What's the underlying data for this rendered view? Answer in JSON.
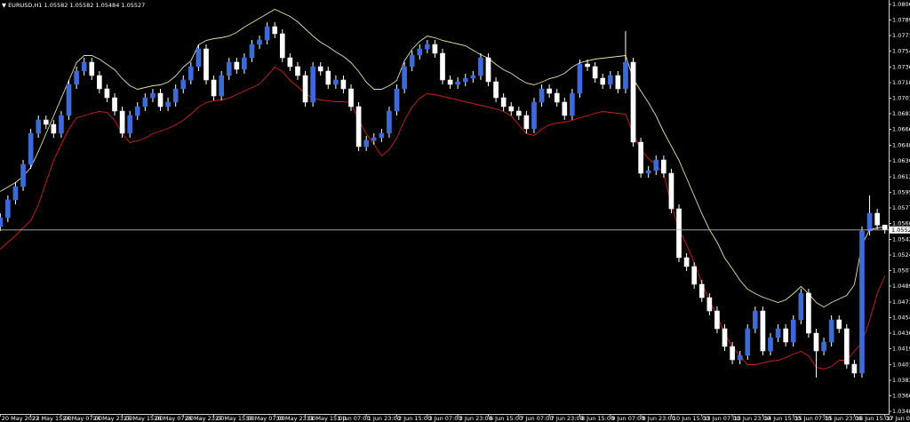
{
  "chart_data": {
    "type": "candlestick",
    "symbol": "EURUSD,H1",
    "categories": [
      "20 May 2022",
      null,
      null,
      null,
      "23 May 15:00",
      null,
      null,
      null,
      "24 May 07:00",
      null,
      null,
      null,
      "24 May 23:00",
      null,
      null,
      null,
      "25 May 15:00",
      null,
      null,
      null,
      "26 May 07:00",
      null,
      null,
      null,
      "26 May 23:00",
      null,
      null,
      null,
      "27 May 15:00",
      null,
      null,
      null,
      "30 May 07:00",
      null,
      null,
      null,
      "30 May 23:00",
      null,
      null,
      null,
      "31 May 15:00",
      null,
      null,
      null,
      "1 Jun 07:00",
      null,
      null,
      null,
      "1 Jun 23:00",
      null,
      null,
      null,
      "2 Jun 15:00",
      null,
      null,
      null,
      "3 Jun 07:00",
      null,
      null,
      null,
      "3 Jun 23:00",
      null,
      null,
      null,
      "6 Jun 15:00",
      null,
      null,
      null,
      "7 Jun 07:00",
      null,
      null,
      null,
      "7 Jun 23:00",
      null,
      null,
      null,
      "8 Jun 15:00",
      null,
      null,
      null,
      "9 Jun 07:00",
      null,
      null,
      null,
      "9 Jun 23:00",
      null,
      null,
      null,
      "10 Jun 15:00",
      null,
      null,
      null,
      "13 Jun 07:00",
      null,
      null,
      null,
      "13 Jun 23:00",
      null,
      null,
      null,
      "14 Jun 15:00",
      null,
      null,
      null,
      "15 Jun 07:00",
      null,
      null,
      null,
      "15 Jun 23:00",
      null,
      null,
      null,
      "16 Jun 15:00",
      null,
      null,
      null,
      "17 Jun 07:00"
    ],
    "open": [
      1.05565,
      1.05665,
      1.05865,
      1.06015,
      1.06265,
      1.06615,
      1.06765,
      1.06715,
      1.06615,
      1.06815,
      1.07165,
      1.07315,
      1.07415,
      1.07265,
      1.07115,
      1.07015,
      1.06865,
      1.06615,
      1.06815,
      1.06915,
      1.07015,
      1.07065,
      1.06915,
      1.06965,
      1.07115,
      1.07215,
      1.07365,
      1.07565,
      1.07215,
      1.07035,
      1.07265,
      1.07415,
      1.07335,
      1.07465,
      1.07615,
      1.07665,
      1.07815,
      1.07735,
      1.07465,
      1.07365,
      1.07265,
      1.06965,
      1.07365,
      1.07315,
      1.07165,
      1.07215,
      1.07115,
      1.06915,
      1.06465,
      1.06535,
      1.06565,
      1.06615,
      1.06865,
      1.07115,
      1.07365,
      1.07495,
      1.07565,
      1.07615,
      1.07515,
      1.07215,
      1.07165,
      1.07195,
      1.07235,
      1.07265,
      1.07465,
      1.07195,
      1.07015,
      1.06915,
      1.06865,
      1.06815,
      1.06665,
      1.06965,
      1.07115,
      1.07065,
      1.06965,
      1.06815,
      1.07065,
      1.07395,
      1.07365,
      1.07235,
      1.07165,
      1.07265,
      1.07115,
      1.07415,
      1.06515,
      1.06165,
      1.06195,
      1.06315,
      1.06165,
      1.05765,
      1.05215,
      1.05115,
      1.04915,
      1.04765,
      1.04615,
      1.04415,
      1.04215,
      1.04065,
      1.04115,
      1.04415,
      1.04615,
      1.04165,
      1.04315,
      1.04415,
      1.04265,
      1.04515,
      1.04815,
      1.04365,
      1.04165,
      1.04265,
      1.04515,
      1.04415,
      1.04015,
      1.03915,
      1.05515,
      1.05715,
      1.05582
    ],
    "high": [
      1.05715,
      1.05915,
      1.06065,
      1.06315,
      1.06665,
      1.06815,
      1.06815,
      1.06765,
      1.06865,
      1.07215,
      1.07365,
      1.07465,
      1.07465,
      1.07315,
      1.07165,
      1.07065,
      1.06915,
      1.06865,
      1.06965,
      1.07065,
      1.07115,
      1.07115,
      1.07015,
      1.07165,
      1.07265,
      1.07415,
      1.07615,
      1.07615,
      1.07265,
      1.07315,
      1.07465,
      1.07465,
      1.07515,
      1.07665,
      1.07715,
      1.07865,
      1.07865,
      1.07785,
      1.07515,
      1.07415,
      1.07315,
      1.07415,
      1.07415,
      1.07365,
      1.07265,
      1.07265,
      1.07165,
      1.06965,
      1.06585,
      1.06615,
      1.06665,
      1.06915,
      1.07165,
      1.07415,
      1.07545,
      1.07615,
      1.07665,
      1.07665,
      1.07565,
      1.07265,
      1.07245,
      1.07285,
      1.07315,
      1.07515,
      1.07515,
      1.07245,
      1.07065,
      1.06965,
      1.06915,
      1.06865,
      1.07015,
      1.07165,
      1.07165,
      1.07115,
      1.07015,
      1.07115,
      1.07445,
      1.07445,
      1.07415,
      1.07285,
      1.07315,
      1.07315,
      1.07765,
      1.07465,
      1.06565,
      1.06245,
      1.06365,
      1.06365,
      1.06215,
      1.05815,
      1.05265,
      1.05165,
      1.04965,
      1.04815,
      1.04665,
      1.04465,
      1.04265,
      1.04165,
      1.04465,
      1.04665,
      1.04665,
      1.04365,
      1.04465,
      1.04465,
      1.04565,
      1.04865,
      1.04865,
      1.04415,
      1.04315,
      1.04565,
      1.04565,
      1.04465,
      1.04065,
      1.05565,
      1.05915,
      1.05765,
      1.05582
    ],
    "low": [
      1.05515,
      1.05615,
      1.05815,
      1.05965,
      1.06215,
      1.06565,
      1.06665,
      1.06565,
      1.06565,
      1.06765,
      1.07115,
      1.07265,
      1.07215,
      1.07065,
      1.06965,
      1.06815,
      1.06565,
      1.06565,
      1.06765,
      1.06865,
      1.06965,
      1.06865,
      1.06865,
      1.06915,
      1.07065,
      1.07165,
      1.07315,
      1.07165,
      1.06985,
      1.06985,
      1.07215,
      1.07285,
      1.07285,
      1.07415,
      1.07565,
      1.07615,
      1.07685,
      1.07415,
      1.07315,
      1.07215,
      1.06915,
      1.06915,
      1.07265,
      1.07115,
      1.07115,
      1.07065,
      1.06865,
      1.06415,
      1.06415,
      1.06485,
      1.06515,
      1.06565,
      1.06815,
      1.07065,
      1.07315,
      1.07445,
      1.07515,
      1.07465,
      1.07165,
      1.07115,
      1.07115,
      1.07145,
      1.07185,
      1.07215,
      1.07145,
      1.06965,
      1.06865,
      1.06815,
      1.06765,
      1.06615,
      1.06615,
      1.06915,
      1.07015,
      1.06915,
      1.06765,
      1.06765,
      1.07015,
      1.07315,
      1.07185,
      1.07115,
      1.07115,
      1.07065,
      1.07065,
      1.06465,
      1.06115,
      1.06115,
      1.06145,
      1.06115,
      1.05715,
      1.05165,
      1.05065,
      1.04865,
      1.04715,
      1.04565,
      1.04365,
      1.04165,
      1.04015,
      1.04015,
      1.04065,
      1.04365,
      1.04115,
      1.04115,
      1.04265,
      1.04215,
      1.04215,
      1.04465,
      1.04315,
      1.03865,
      1.04115,
      1.04215,
      1.04365,
      1.03965,
      1.03865,
      1.03865,
      1.05465,
      1.05532,
      1.05484
    ],
    "close": [
      1.05665,
      1.05865,
      1.06015,
      1.06265,
      1.06615,
      1.06765,
      1.06715,
      1.06615,
      1.06815,
      1.07165,
      1.07315,
      1.07415,
      1.07265,
      1.07115,
      1.07015,
      1.06865,
      1.06615,
      1.06815,
      1.06915,
      1.07015,
      1.07065,
      1.06915,
      1.06965,
      1.07115,
      1.07215,
      1.07365,
      1.07565,
      1.07215,
      1.07035,
      1.07265,
      1.07415,
      1.07335,
      1.07465,
      1.07615,
      1.07665,
      1.07815,
      1.07735,
      1.07465,
      1.07365,
      1.07265,
      1.06965,
      1.07365,
      1.07315,
      1.07165,
      1.07215,
      1.07115,
      1.06915,
      1.06465,
      1.06535,
      1.06565,
      1.06615,
      1.06865,
      1.07115,
      1.07365,
      1.07495,
      1.07565,
      1.07615,
      1.07515,
      1.07215,
      1.07165,
      1.07195,
      1.07235,
      1.07265,
      1.07465,
      1.07195,
      1.07015,
      1.06915,
      1.06865,
      1.06815,
      1.06665,
      1.06965,
      1.07115,
      1.07065,
      1.06965,
      1.06815,
      1.07065,
      1.07395,
      1.07365,
      1.07235,
      1.07165,
      1.07265,
      1.07115,
      1.07415,
      1.06515,
      1.06165,
      1.06195,
      1.06315,
      1.06165,
      1.05765,
      1.05215,
      1.05115,
      1.04915,
      1.04765,
      1.04615,
      1.04415,
      1.04215,
      1.04065,
      1.04115,
      1.04415,
      1.04615,
      1.04165,
      1.04315,
      1.04415,
      1.04265,
      1.04515,
      1.04815,
      1.04365,
      1.04165,
      1.04265,
      1.04515,
      1.04415,
      1.04015,
      1.03915,
      1.05515,
      1.05715,
      1.05582,
      1.05527
    ],
    "up_color": "#3d6ad6",
    "down_color": "#ffffff",
    "wick_color": "#ffffff",
    "lines": [
      {
        "color": "#e4e4a6",
        "values": [
          1.0596,
          1.0601,
          1.0606,
          1.0613,
          1.0623,
          1.0641,
          1.0661,
          1.0681,
          1.0701,
          1.0721,
          1.0741,
          1.0749,
          1.0749,
          1.0745,
          1.0739,
          1.0733,
          1.0723,
          1.0715,
          1.0711,
          1.0713,
          1.0715,
          1.0716,
          1.0719,
          1.0726,
          1.0736,
          1.0743,
          1.0761,
          1.0766,
          1.0768,
          1.0769,
          1.0771,
          1.0775,
          1.0781,
          1.0786,
          1.0791,
          1.0796,
          1.0801,
          1.0797,
          1.0793,
          1.0787,
          1.0779,
          1.0771,
          1.0764,
          1.0759,
          1.0753,
          1.0748,
          1.0741,
          1.0731,
          1.0719,
          1.0711,
          1.0711,
          1.0715,
          1.0721,
          1.0743,
          1.0756,
          1.0765,
          1.0771,
          1.0769,
          1.0766,
          1.0764,
          1.0762,
          1.076,
          1.0755,
          1.075,
          1.0746,
          1.0739,
          1.0733,
          1.0729,
          1.0723,
          1.0718,
          1.0716,
          1.0719,
          1.0723,
          1.0725,
          1.0729,
          1.0736,
          1.0741,
          1.0743,
          1.0745,
          1.0746,
          1.0747,
          1.0748,
          1.0749,
          1.0723,
          1.0709,
          1.0696,
          1.0681,
          1.0663,
          1.0647,
          1.0631,
          1.0611,
          1.0591,
          1.0571,
          1.0553,
          1.0539,
          1.0521,
          1.0509,
          1.0496,
          1.0486,
          1.0481,
          1.0477,
          1.0474,
          1.0471,
          1.0474,
          1.0481,
          1.0489,
          1.0481,
          1.0471,
          1.0466,
          1.0471,
          1.0475,
          1.0479,
          1.0491,
          1.0536,
          1.0553,
          1.0555,
          1.0556
        ]
      },
      {
        "color": "#c8261d",
        "values": [
          1.0531,
          1.0539,
          1.0546,
          1.0555,
          1.0563,
          1.0581,
          1.0606,
          1.0631,
          1.0649,
          1.0666,
          1.0679,
          1.0681,
          1.0684,
          1.0686,
          1.0685,
          1.0676,
          1.0661,
          1.0651,
          1.0653,
          1.0656,
          1.0661,
          1.0664,
          1.0667,
          1.0671,
          1.0676,
          1.0683,
          1.0691,
          1.0696,
          1.0698,
          1.0699,
          1.0701,
          1.0705,
          1.0709,
          1.0713,
          1.0717,
          1.0726,
          1.0736,
          1.0731,
          1.0721,
          1.0714,
          1.0706,
          1.0701,
          1.0699,
          1.0698,
          1.0697,
          1.0697,
          1.0696,
          1.0676,
          1.0661,
          1.0649,
          1.0636,
          1.0643,
          1.0656,
          1.0676,
          1.0691,
          1.0701,
          1.0706,
          1.0705,
          1.0703,
          1.0701,
          1.0699,
          1.0697,
          1.0695,
          1.0693,
          1.0691,
          1.0689,
          1.0686,
          1.0681,
          1.0671,
          1.0661,
          1.0659,
          1.0666,
          1.0671,
          1.0673,
          1.0674,
          1.0676,
          1.0679,
          1.0681,
          1.0684,
          1.0686,
          1.0685,
          1.0684,
          1.0683,
          1.0661,
          1.0643,
          1.0633,
          1.0626,
          1.0616,
          1.0581,
          1.0553,
          1.0536,
          1.0516,
          1.0493,
          1.0473,
          1.0456,
          1.0436,
          1.0421,
          1.0411,
          1.0401,
          1.0401,
          1.0403,
          1.0405,
          1.0406,
          1.0409,
          1.0413,
          1.0416,
          1.0411,
          1.0398,
          1.0396,
          1.0399,
          1.0406,
          1.0406,
          1.0416,
          1.0426,
          1.0451,
          1.0481,
          1.0501
        ]
      }
    ],
    "ylim": [
      1.03455,
      1.08115
    ],
    "yticks": [
      1.08065,
      {
        "value": 1.0789,
        "label": "1.07890"
      },
      1.07715,
      {
        "value": 1.0754,
        "label": "1.07540"
      },
      {
        "value": 1.0736,
        "label": "1.07360"
      },
      1.07185,
      {
        "value": 1.0701,
        "label": "1.07010"
      },
      1.06835,
      {
        "value": 1.0666,
        "label": "1.06660"
      },
      {
        "value": 1.0648,
        "label": "1.06480"
      },
      1.06305,
      1.06125,
      {
        "value": 1.0595,
        "label": "1.05950"
      },
      1.05775,
      {
        "value": 1.056,
        "label": "1.05600"
      },
      {
        "value": 1.0542,
        "label": "1.05420"
      },
      1.05245,
      {
        "value": 1.0507,
        "label": "1.05070"
      },
      1.04895,
      1.04715,
      {
        "value": 1.0454,
        "label": "1.04540"
      },
      1.04365,
      {
        "value": 1.0419,
        "label": "1.04190"
      },
      {
        "value": 1.0401,
        "label": "1.04010"
      },
      1.03835,
      {
        "value": 1.0366,
        "label": "1.03660"
      },
      1.03485
    ],
    "current_price_line": true,
    "grid": false
  }
}
